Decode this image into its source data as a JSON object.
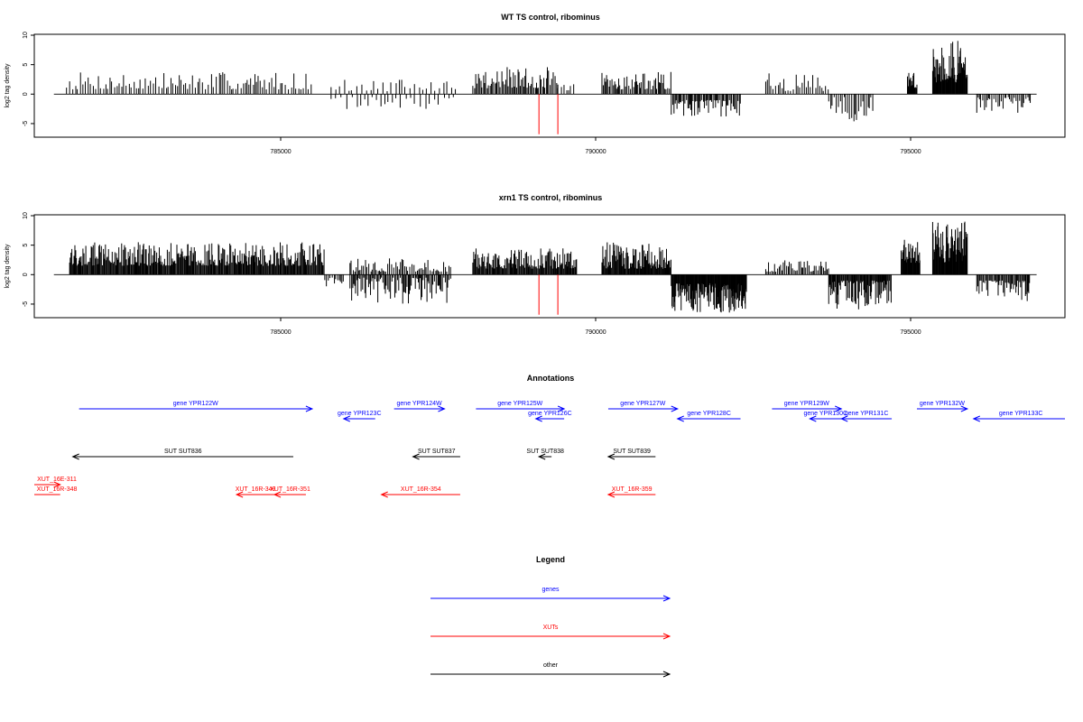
{
  "chart_data": [
    {
      "type": "bar",
      "title": "WT TS control, ribominus",
      "ylabel": "log2 tag density",
      "xlim": [
        781200,
        797500
      ],
      "ylim": [
        -7,
        10
      ],
      "yticks": [
        "10",
        "5",
        "0",
        "-5"
      ],
      "xticks": [
        "785000",
        "790000",
        "795000"
      ],
      "regions": [
        {
          "start": 781600,
          "end": 785500,
          "sign": 1,
          "min": 0.8,
          "max": 3.8,
          "step": 35
        },
        {
          "start": 785800,
          "end": 787800,
          "sign": 1,
          "min": 0.5,
          "max": 2.5,
          "step": 60
        },
        {
          "start": 785800,
          "end": 787800,
          "sign": -1,
          "min": 0.5,
          "max": 2.6,
          "step": 70
        },
        {
          "start": 788050,
          "end": 789400,
          "sign": 1,
          "min": 1.0,
          "max": 4.6,
          "step": 20
        },
        {
          "start": 789400,
          "end": 789700,
          "sign": 1,
          "min": 0.3,
          "max": 1.8,
          "step": 40
        },
        {
          "start": 790100,
          "end": 791200,
          "sign": 1,
          "min": 0.8,
          "max": 3.8,
          "step": 20
        },
        {
          "start": 791200,
          "end": 792300,
          "sign": -1,
          "min": 1.0,
          "max": 3.8,
          "step": 18
        },
        {
          "start": 792700,
          "end": 793700,
          "sign": 1,
          "min": 0.5,
          "max": 3.6,
          "step": 35
        },
        {
          "start": 793700,
          "end": 794400,
          "sign": -1,
          "min": 0.5,
          "max": 5.0,
          "step": 25
        },
        {
          "start": 794950,
          "end": 795100,
          "sign": 1,
          "min": 1.0,
          "max": 3.8,
          "step": 8
        },
        {
          "start": 795350,
          "end": 795900,
          "sign": 1,
          "min": 2.0,
          "max": 9.2,
          "step": 8
        },
        {
          "start": 796050,
          "end": 796900,
          "sign": -1,
          "min": 0.5,
          "max": 3.2,
          "step": 25
        }
      ],
      "highlights": [
        {
          "x": 789100,
          "y": -6.8
        },
        {
          "x": 789400,
          "y": -6.8
        }
      ]
    },
    {
      "type": "bar",
      "title": "xrn1 TS control, ribominus",
      "ylabel": "log2 tag density",
      "xlim": [
        781200,
        797500
      ],
      "ylim": [
        -7,
        10
      ],
      "yticks": [
        "10",
        "5",
        "0",
        "-5"
      ],
      "xticks": [
        "785000",
        "790000",
        "795000"
      ],
      "regions": [
        {
          "start": 781650,
          "end": 785700,
          "sign": 1,
          "min": 1.5,
          "max": 5.5,
          "step": 12
        },
        {
          "start": 785700,
          "end": 786000,
          "sign": -1,
          "min": 0.5,
          "max": 2.2,
          "step": 25
        },
        {
          "start": 786100,
          "end": 787700,
          "sign": 1,
          "min": 0.5,
          "max": 2.8,
          "step": 25
        },
        {
          "start": 786100,
          "end": 787700,
          "sign": -1,
          "min": 0.5,
          "max": 5.0,
          "step": 18
        },
        {
          "start": 788050,
          "end": 789700,
          "sign": 1,
          "min": 1.0,
          "max": 4.5,
          "step": 12
        },
        {
          "start": 790100,
          "end": 791200,
          "sign": 1,
          "min": 1.0,
          "max": 5.5,
          "step": 10
        },
        {
          "start": 791200,
          "end": 792400,
          "sign": -1,
          "min": 1.5,
          "max": 6.5,
          "step": 8
        },
        {
          "start": 792700,
          "end": 793700,
          "sign": 1,
          "min": 0.5,
          "max": 2.5,
          "step": 20
        },
        {
          "start": 793700,
          "end": 794700,
          "sign": -1,
          "min": 1.0,
          "max": 6.0,
          "step": 12
        },
        {
          "start": 794850,
          "end": 795150,
          "sign": 1,
          "min": 2.0,
          "max": 6.5,
          "step": 8
        },
        {
          "start": 795350,
          "end": 795900,
          "sign": 1,
          "min": 2.0,
          "max": 9.0,
          "step": 8
        },
        {
          "start": 796050,
          "end": 796900,
          "sign": -1,
          "min": 1.0,
          "max": 4.5,
          "step": 15
        }
      ],
      "highlights": [
        {
          "x": 789100,
          "y": -6.8
        },
        {
          "x": 789400,
          "y": -6.8
        }
      ]
    }
  ],
  "annotations": {
    "title": "Annotations",
    "items": [
      {
        "label": "gene YPR122W",
        "start": 781800,
        "end": 785500,
        "strand": "+",
        "type": "gene",
        "row": 0
      },
      {
        "label": "gene YPR124W",
        "start": 786800,
        "end": 787600,
        "strand": "+",
        "type": "gene",
        "row": 0
      },
      {
        "label": "gene YPR123C",
        "start": 786000,
        "end": 786500,
        "strand": "-",
        "type": "gene",
        "row": 1
      },
      {
        "label": "gene YPR125W",
        "start": 788100,
        "end": 789500,
        "strand": "+",
        "type": "gene",
        "row": 0
      },
      {
        "label": "gene YPR126C",
        "start": 789050,
        "end": 789500,
        "strand": "-",
        "type": "gene",
        "row": 1
      },
      {
        "label": "gene YPR127W",
        "start": 790200,
        "end": 791300,
        "strand": "+",
        "type": "gene",
        "row": 0
      },
      {
        "label": "gene YPR128C",
        "start": 791300,
        "end": 792300,
        "strand": "-",
        "type": "gene",
        "row": 1
      },
      {
        "label": "gene YPR129W",
        "start": 792800,
        "end": 793900,
        "strand": "+",
        "type": "gene",
        "row": 0
      },
      {
        "label": "gene YPR130C",
        "start": 793400,
        "end": 793900,
        "strand": "-",
        "type": "gene",
        "row": 1
      },
      {
        "label": "gene YPR131C",
        "start": 793900,
        "end": 794700,
        "strand": "-",
        "type": "gene",
        "row": 1
      },
      {
        "label": "gene YPR132W",
        "start": 795100,
        "end": 795900,
        "strand": "+",
        "type": "gene",
        "row": 0
      },
      {
        "label": "gene YPR133C",
        "start": 796000,
        "end": 797500,
        "strand": "-",
        "type": "gene",
        "row": 1
      },
      {
        "label": "SUT SUT836",
        "start": 781700,
        "end": 785200,
        "strand": "-",
        "type": "other",
        "row": 2
      },
      {
        "label": "SUT SUT837",
        "start": 787100,
        "end": 787850,
        "strand": "-",
        "type": "other",
        "row": 2
      },
      {
        "label": "SUT SUT838",
        "start": 789100,
        "end": 789300,
        "strand": "-",
        "type": "other",
        "row": 2
      },
      {
        "label": "SUT SUT839",
        "start": 790200,
        "end": 790950,
        "strand": "-",
        "type": "other",
        "row": 2
      },
      {
        "label": "XUT_16E-311",
        "start": 781050,
        "end": 781500,
        "strand": "+",
        "type": "xut",
        "row": 3
      },
      {
        "label": "XUT_16R-348",
        "start": 780600,
        "end": 781500,
        "strand": "-",
        "type": "xut",
        "row": 4
      },
      {
        "label": "XUT_16R-349",
        "start": 784300,
        "end": 784900,
        "strand": "-",
        "type": "xut",
        "row": 4
      },
      {
        "label": "XUT_16R-351",
        "start": 784900,
        "end": 785400,
        "strand": "-",
        "type": "xut",
        "row": 4
      },
      {
        "label": "XUT_16R-354",
        "start": 786600,
        "end": 787850,
        "strand": "-",
        "type": "xut",
        "row": 4
      },
      {
        "label": "XUT_16R-359",
        "start": 790200,
        "end": 790950,
        "strand": "-",
        "type": "xut",
        "row": 4
      }
    ]
  },
  "legend": {
    "title": "Legend",
    "items": [
      {
        "label": "genes",
        "type": "gene"
      },
      {
        "label": "XUTs",
        "type": "xut"
      },
      {
        "label": "other",
        "type": "other"
      }
    ]
  },
  "colors": {
    "gene": "#0000ff",
    "xut": "#ff0000",
    "other": "#000000",
    "highlight": "#ff0000"
  }
}
